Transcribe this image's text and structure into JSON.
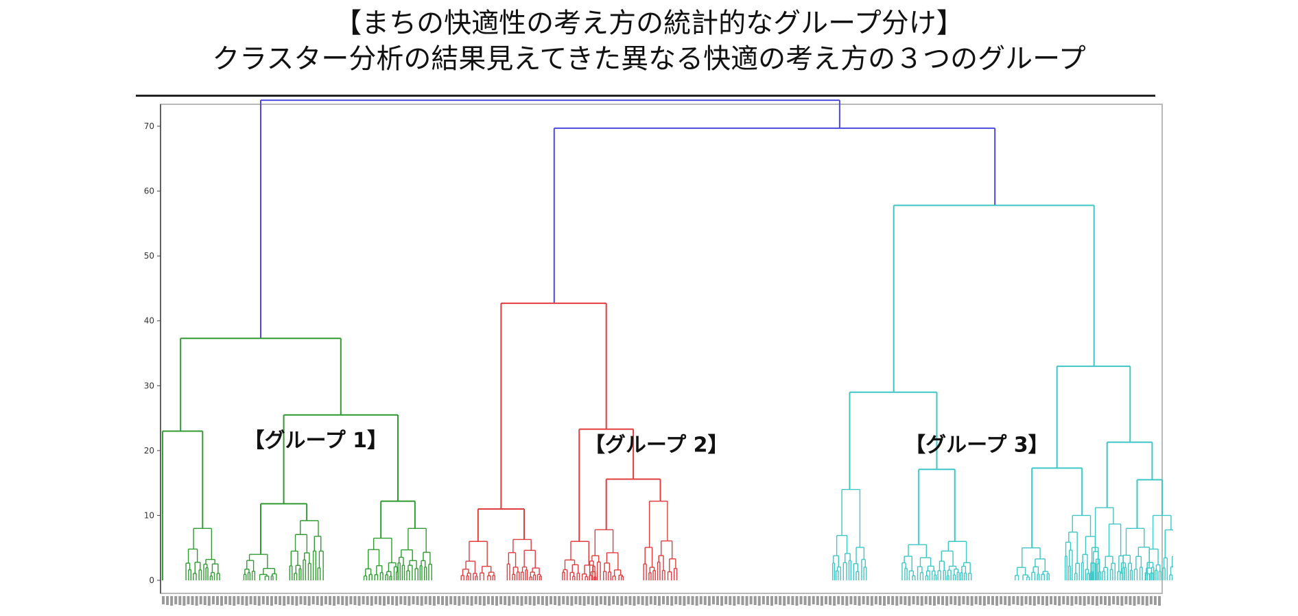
{
  "title": {
    "line1": "【まちの快適性の考え方の統計的なグループ分け】",
    "line2": "クラスター分析の結果見えてきた異なる快適の考え方の３つのグループ"
  },
  "chart_data": {
    "type": "dendrogram",
    "ylim": [
      0,
      78
    ],
    "yticks": [
      0,
      10,
      20,
      30,
      40,
      50,
      60,
      70
    ],
    "grid": false,
    "legend": "none",
    "colors": {
      "root": "#4a4ae0",
      "group1": "#2f9a2f",
      "group2": "#e03c3c",
      "group3": "#3cc6c6"
    },
    "leaf_count": 240,
    "merges": [
      {
        "name": "root",
        "height": 74,
        "children": [
          "group1",
          "upper-right"
        ]
      },
      {
        "name": "upper-right",
        "height": 69.7,
        "children": [
          "group2",
          "group3"
        ]
      },
      {
        "name": "group1",
        "height": 37.3,
        "children": [
          "g1-a",
          "g1-b"
        ]
      },
      {
        "name": "g1-a",
        "height": 23,
        "children": [
          "g1-a-single",
          "g1-a-sub"
        ]
      },
      {
        "name": "g1-b",
        "height": 25.5,
        "children": [
          "g1-b-left",
          "g1-b-right"
        ]
      },
      {
        "name": "g1-b-left",
        "height": 11.8,
        "children": [
          "g1-b-left-1",
          "g1-b-left-2"
        ]
      },
      {
        "name": "g1-b-right",
        "height": 12.2,
        "children": [
          "g1-b-right-1",
          "g1-b-right-2"
        ]
      },
      {
        "name": "group2",
        "height": 42.7,
        "children": [
          "g2-a",
          "g2-b"
        ]
      },
      {
        "name": "g2-a",
        "height": 11,
        "children": [
          "g2-a-1",
          "g2-a-2"
        ]
      },
      {
        "name": "g2-b",
        "height": 23.3,
        "children": [
          "g2-b-1",
          "g2-b-2"
        ]
      },
      {
        "name": "g2-b-2",
        "height": 15.6,
        "children": [
          "g2-b-2a",
          "g2-b-2b"
        ]
      },
      {
        "name": "group3",
        "height": 57.8,
        "children": [
          "g3-a",
          "g3-b"
        ]
      },
      {
        "name": "g3-a",
        "height": 29,
        "children": [
          "g3-a-1",
          "g3-a-2"
        ]
      },
      {
        "name": "g3-a-2",
        "height": 17.1,
        "children": [
          "g3-a-2a",
          "g3-a-2b"
        ]
      },
      {
        "name": "g3-b",
        "height": 33,
        "children": [
          "g3-b-1",
          "g3-b-2"
        ]
      },
      {
        "name": "g3-b-1",
        "height": 17.3,
        "children": [
          "g3-b-1a",
          "g3-b-1b"
        ]
      },
      {
        "name": "g3-b-2",
        "height": 21.3,
        "children": [
          "g3-b-2a",
          "g3-b-2b"
        ]
      },
      {
        "name": "g3-b-2b",
        "height": 15.5,
        "children": [
          "g3-b-2b-1",
          "g3-b-2b-2"
        ]
      }
    ],
    "annotations": [
      {
        "text": "【グループ 1】",
        "x": 0.155,
        "y": 20.5
      },
      {
        "text": "【グループ 2】",
        "x": 0.495,
        "y": 19.8
      },
      {
        "text": "【グループ 3】",
        "x": 0.815,
        "y": 19.8
      }
    ]
  }
}
